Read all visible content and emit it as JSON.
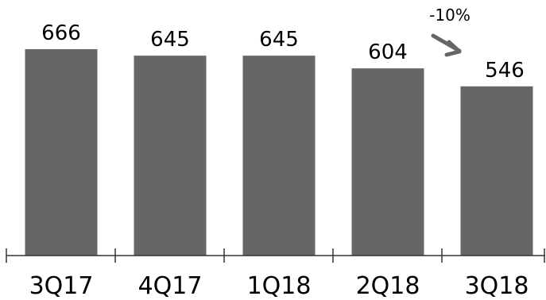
{
  "chart_data": {
    "type": "bar",
    "categories": [
      "3Q17",
      "4Q17",
      "1Q18",
      "2Q18",
      "3Q18"
    ],
    "values": [
      666,
      645,
      645,
      604,
      546
    ],
    "data_labels": [
      "666",
      "645",
      "645",
      "604",
      "546"
    ],
    "annotation": {
      "text": "-10%",
      "from": "2Q18",
      "to": "3Q18"
    },
    "ylim": [
      0,
      700
    ],
    "grid": false,
    "legend": "none",
    "colors": {
      "bar": "#666666",
      "axis": "#333333",
      "text": "#000000"
    }
  }
}
